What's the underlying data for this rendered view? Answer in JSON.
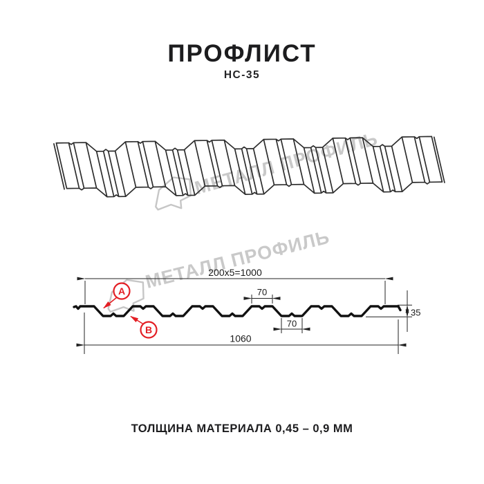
{
  "page": {
    "title": "ПРОФЛИСТ",
    "subtitle": "НС-35",
    "thickness_note": "ТОЛЩИНА МАТЕРИАЛА 0,45 – 0,9 ММ"
  },
  "watermark": {
    "text": "МЕТАЛЛ ПРОФИЛЬ"
  },
  "dimensions": {
    "top_width": "200x5=1000",
    "rib_top_width": "70",
    "rib_bottom_width": "70",
    "height": "35",
    "total_width": "1060"
  },
  "callouts": {
    "a": "A",
    "b": "B"
  },
  "colors": {
    "accent_red": "#e31e24",
    "line_black": "#161616",
    "sheet_line": "#2d2d2d",
    "dim_line": "#222222",
    "watermark_gray": "#c9c9c9"
  }
}
